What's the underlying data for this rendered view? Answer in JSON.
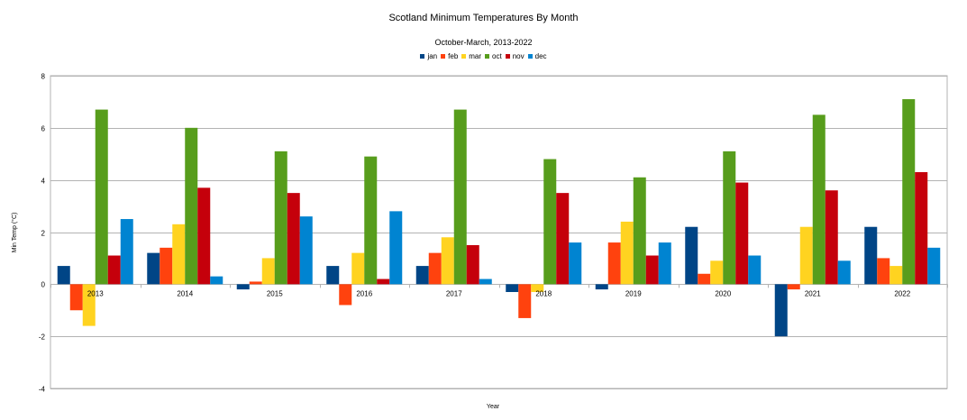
{
  "chart_data": {
    "type": "bar",
    "title": "Scotland Minimum Temperatures By Month",
    "subtitle": "October-March, 2013-2022",
    "xlabel": "Year",
    "ylabel": "Min Temp (°C)",
    "ylim": [
      -4,
      8
    ],
    "yticks": [
      -4,
      -2,
      0,
      2,
      4,
      6,
      8
    ],
    "grid": true,
    "legend_position": "top",
    "categories": [
      "2013",
      "2014",
      "2015",
      "2016",
      "2017",
      "2018",
      "2019",
      "2020",
      "2021",
      "2022"
    ],
    "series": [
      {
        "name": "jan",
        "color": "#004586",
        "values": [
          0.7,
          1.2,
          -0.2,
          0.7,
          0.7,
          -0.3,
          -0.2,
          2.2,
          -2.0,
          2.2
        ]
      },
      {
        "name": "feb",
        "color": "#ff420e",
        "values": [
          -1.0,
          1.4,
          0.1,
          -0.8,
          1.2,
          -1.3,
          1.6,
          0.4,
          -0.2,
          1.0
        ]
      },
      {
        "name": "mar",
        "color": "#ffd320",
        "values": [
          -1.6,
          2.3,
          1.0,
          1.2,
          1.8,
          -0.3,
          2.4,
          0.9,
          2.2,
          0.7
        ]
      },
      {
        "name": "oct",
        "color": "#579d1c",
        "values": [
          6.7,
          6.0,
          5.1,
          4.9,
          6.7,
          4.8,
          4.1,
          5.1,
          6.5,
          7.1
        ]
      },
      {
        "name": "nov",
        "color": "#c5000b",
        "values": [
          1.1,
          3.7,
          3.5,
          0.2,
          1.5,
          3.5,
          1.1,
          3.9,
          3.6,
          4.3
        ]
      },
      {
        "name": "dec",
        "color": "#0084d1",
        "values": [
          2.5,
          0.3,
          2.6,
          2.8,
          0.2,
          1.6,
          1.6,
          1.1,
          0.9,
          1.4
        ]
      }
    ]
  }
}
